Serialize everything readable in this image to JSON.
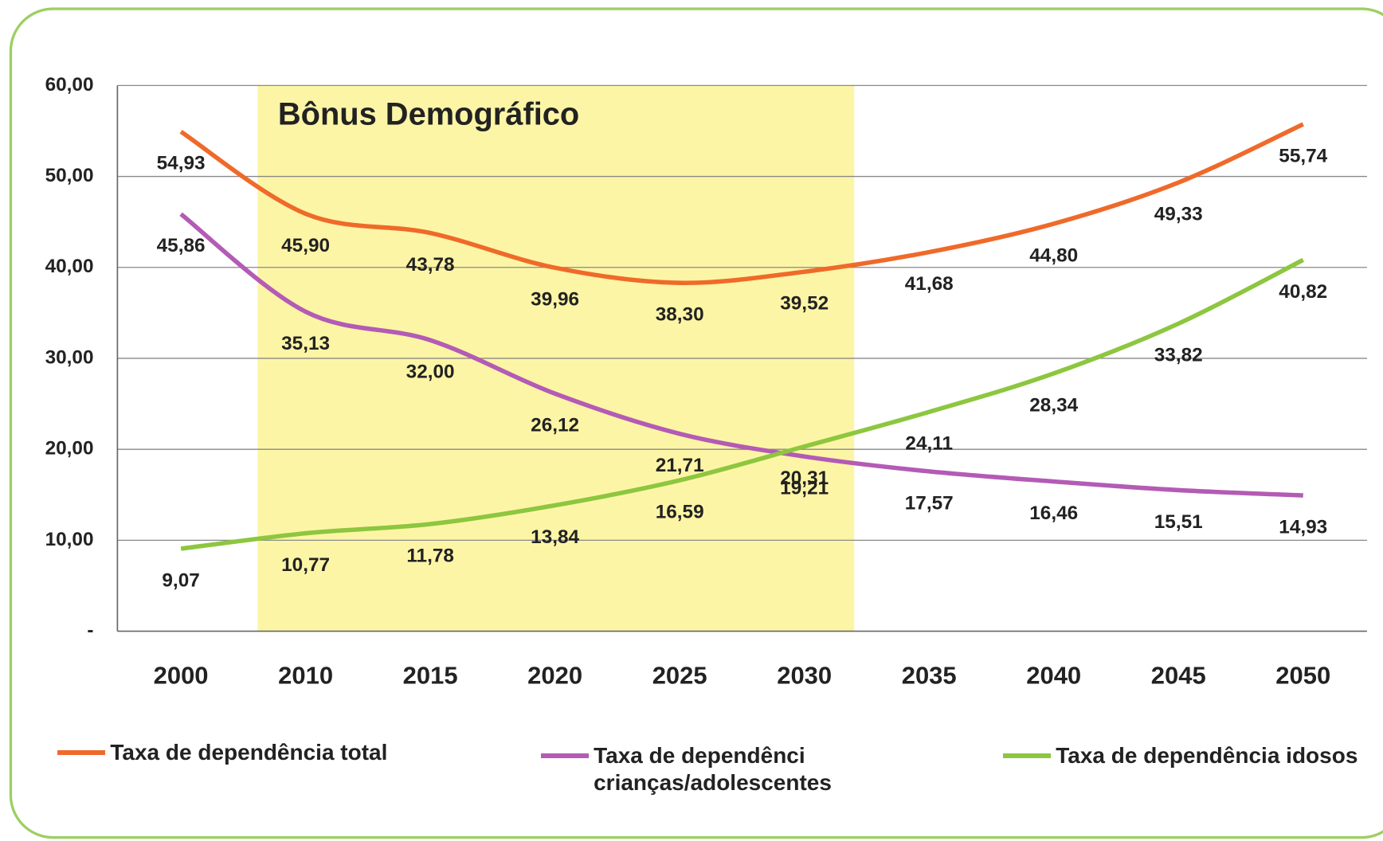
{
  "chart_data": {
    "type": "line",
    "annotation": "Bônus Demográfico",
    "categories": [
      "2000",
      "2010",
      "2015",
      "2020",
      "2025",
      "2030",
      "2035",
      "2040",
      "2045",
      "2050"
    ],
    "series": [
      {
        "name": "Taxa de dependência total",
        "color": "#ef6a2a",
        "values": [
          54.93,
          45.9,
          43.78,
          39.96,
          38.3,
          39.52,
          41.68,
          44.8,
          49.33,
          55.74
        ],
        "value_labels": [
          "54,93",
          "45,90",
          "43,78",
          "39,96",
          "38,30",
          "39,52",
          "41,68",
          "44,80",
          "49,33",
          "55,74"
        ]
      },
      {
        "name": "Taxa de dependênci crianças/adolescentes",
        "color": "#b35bb5",
        "values": [
          45.86,
          35.13,
          32.0,
          26.12,
          21.71,
          19.21,
          17.57,
          16.46,
          15.51,
          14.93
        ],
        "value_labels": [
          "45,86",
          "35,13",
          "32,00",
          "26,12",
          "21,71",
          "19,21",
          "17,57",
          "16,46",
          "15,51",
          "14,93"
        ]
      },
      {
        "name": "Taxa de dependência idosos",
        "color": "#8dc63f",
        "values": [
          9.07,
          10.77,
          11.78,
          13.84,
          16.59,
          20.31,
          24.11,
          28.34,
          33.82,
          40.82
        ],
        "value_labels": [
          "9,07",
          "10,77",
          "11,78",
          "13,84",
          "16,59",
          "20,31",
          "24,11",
          "28,34",
          "33,82",
          "40,82"
        ]
      }
    ],
    "ylim": [
      0,
      60
    ],
    "yticks": [
      {
        "value": 0,
        "label": "-"
      },
      {
        "value": 10,
        "label": "10,00"
      },
      {
        "value": 20,
        "label": "20,00"
      },
      {
        "value": 30,
        "label": "30,00"
      },
      {
        "value": 40,
        "label": "40,00"
      },
      {
        "value": 50,
        "label": "50,00"
      },
      {
        "value": 60,
        "label": "60,00"
      }
    ],
    "grid": true
  }
}
